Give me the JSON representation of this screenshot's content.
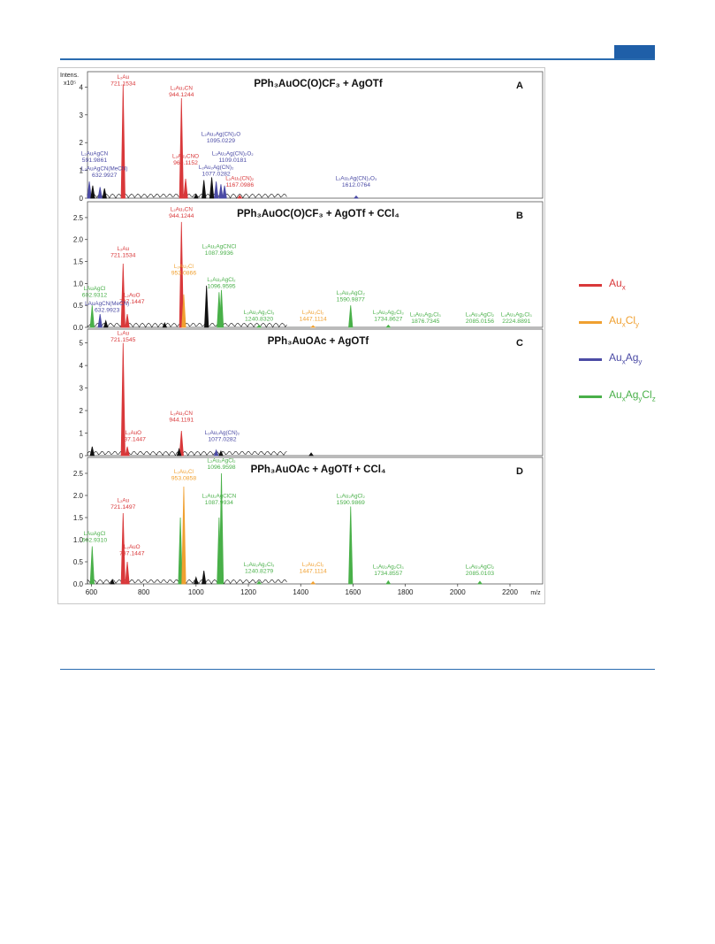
{
  "page": {
    "tab_color": "#1f5fa8"
  },
  "colors": {
    "Au": "#d9383a",
    "AuCl": "#f0a030",
    "AuAg": "#4b4ba5",
    "AuAgCl": "#49b049",
    "baseline": "#111111"
  },
  "legend": [
    {
      "series": "Au",
      "base": "Au",
      "sub1": "x",
      "mid": "",
      "sub2": "",
      "end": "",
      "sub3": "",
      "color": "#d9383a"
    },
    {
      "series": "AuCl",
      "base": "Au",
      "sub1": "x",
      "mid": "Cl",
      "sub2": "y",
      "end": "",
      "sub3": "",
      "color": "#f0a030"
    },
    {
      "series": "AuAg",
      "base": "Au",
      "sub1": "x",
      "mid": "Ag",
      "sub2": "y",
      "end": "",
      "sub3": "",
      "color": "#4b4ba5"
    },
    {
      "series": "AuAgCl",
      "base": "Au",
      "sub1": "x",
      "mid": "Ag",
      "sub2": "y",
      "end": "Cl",
      "sub3": "z",
      "color": "#49b049"
    }
  ],
  "chart_data": {
    "type": "line",
    "xlabel": "m/z",
    "ylabel": "Intens.",
    "y_multiplier": "x10⁵",
    "xlim": [
      585,
      2325
    ],
    "x_ticks": [
      600,
      800,
      1000,
      1200,
      1400,
      1600,
      1800,
      2000,
      2200
    ],
    "panels": [
      {
        "letter": "A",
        "title": "PPh₃AuOC(O)CF₃ + AgOTf",
        "ylim": [
          0,
          4.3
        ],
        "y_ticks": [
          0,
          1,
          2,
          3,
          4
        ],
        "peaks": [
          {
            "x": 721.15,
            "y": 4.1,
            "series": "Au"
          },
          {
            "x": 944.12,
            "y": 3.6,
            "series": "Au"
          },
          {
            "x": 960.12,
            "y": 0.7,
            "series": "Au"
          },
          {
            "x": 1167.1,
            "y": 0.1,
            "series": "Au"
          },
          {
            "x": 591.99,
            "y": 0.6,
            "series": "AuAg"
          },
          {
            "x": 632.99,
            "y": 0.4,
            "series": "AuAg"
          },
          {
            "x": 1077.03,
            "y": 0.6,
            "series": "AuAg"
          },
          {
            "x": 1095.02,
            "y": 0.5,
            "series": "AuAg"
          },
          {
            "x": 1109.02,
            "y": 0.45,
            "series": "AuAg"
          },
          {
            "x": 1612.08,
            "y": 0.08,
            "series": "AuAg"
          },
          {
            "x": 605,
            "y": 0.45,
            "series": "baseline"
          },
          {
            "x": 650,
            "y": 0.35,
            "series": "baseline"
          },
          {
            "x": 1030,
            "y": 0.65,
            "series": "baseline"
          },
          {
            "x": 1060,
            "y": 0.75,
            "series": "baseline"
          },
          {
            "x": 1000,
            "y": 0.15,
            "series": "baseline"
          }
        ],
        "labels": [
          {
            "x": 721.15,
            "y": 4.3,
            "name": "L₂Au",
            "mz": "721.1534",
            "series": "Au"
          },
          {
            "x": 944.12,
            "y": 3.9,
            "name": "L₂Au₂CN",
            "mz": "944.1244",
            "series": "Au"
          },
          {
            "x": 960.12,
            "y": 1.45,
            "name": "L₂Au₂CNO",
            "mz": "960.1152",
            "series": "Au"
          },
          {
            "x": 1167.1,
            "y": 0.65,
            "name": "L₂Au₃(CN)₂",
            "mz": "1167.0986",
            "series": "Au"
          },
          {
            "x": 612,
            "y": 1.55,
            "name": "L₂AuAgCN",
            "mz": "591.9861",
            "series": "AuAg"
          },
          {
            "x": 650,
            "y": 1.0,
            "name": "L₂AuAgCN(MeCN)",
            "mz": "632.9927",
            "series": "AuAg"
          },
          {
            "x": 1095.02,
            "y": 2.25,
            "name": "L₂Au₂Ag(CN)₂O",
            "mz": "1095.0229",
            "series": "AuAg"
          },
          {
            "x": 1140,
            "y": 1.55,
            "name": "L₂Au₂Ag(CN)₂O₂",
            "mz": "1109.0181",
            "series": "AuAg"
          },
          {
            "x": 1077.03,
            "y": 1.05,
            "name": "L₂Au₂Ag(CN)₂",
            "mz": "1077.0282",
            "series": "AuAg"
          },
          {
            "x": 1612.08,
            "y": 0.65,
            "name": "L₂Au₂Ag(CN)₂O₃",
            "mz": "1612.0764",
            "series": "AuAg"
          }
        ]
      },
      {
        "letter": "B",
        "title": "PPh₃AuOC(O)CF₃ + AgOTf + CCl₄",
        "ylim": [
          0,
          2.7
        ],
        "y_ticks": [
          0.0,
          0.5,
          1.0,
          1.5,
          2.0,
          2.5
        ],
        "peaks": [
          {
            "x": 721.15,
            "y": 1.45,
            "series": "Au"
          },
          {
            "x": 737.14,
            "y": 0.3,
            "series": "Au"
          },
          {
            "x": 944.12,
            "y": 2.4,
            "series": "Au"
          },
          {
            "x": 953.09,
            "y": 0.75,
            "series": "AuCl"
          },
          {
            "x": 1087.99,
            "y": 0.8,
            "series": "AuAgCl"
          },
          {
            "x": 1096.96,
            "y": 0.85,
            "series": "AuAgCl"
          },
          {
            "x": 602.93,
            "y": 0.5,
            "series": "AuAgCl"
          },
          {
            "x": 1240.83,
            "y": 0.05,
            "series": "AuAgCl"
          },
          {
            "x": 1590.99,
            "y": 0.5,
            "series": "AuAgCl"
          },
          {
            "x": 1734.86,
            "y": 0.05,
            "series": "AuAgCl"
          },
          {
            "x": 632.99,
            "y": 0.3,
            "series": "AuAg"
          },
          {
            "x": 1447.11,
            "y": 0.04,
            "series": "AuCl"
          },
          {
            "x": 1040,
            "y": 0.95,
            "series": "baseline"
          },
          {
            "x": 655,
            "y": 0.15,
            "series": "baseline"
          },
          {
            "x": 880,
            "y": 0.1,
            "series": "baseline"
          }
        ],
        "labels": [
          {
            "x": 944.12,
            "y": 2.65,
            "name": "L₂Au₂CN",
            "mz": "944.1244",
            "series": "Au"
          },
          {
            "x": 721.15,
            "y": 1.75,
            "name": "L₂Au",
            "mz": "721.1534",
            "series": "Au"
          },
          {
            "x": 1087.99,
            "y": 1.8,
            "name": "L₂Au₂AgCNCl",
            "mz": "1087.9936",
            "series": "AuAgCl"
          },
          {
            "x": 953.09,
            "y": 1.35,
            "name": "L₂Au₂Cl",
            "mz": "953.0866",
            "series": "AuCl"
          },
          {
            "x": 1096.96,
            "y": 1.05,
            "name": "L₂Au₂AgCl₂",
            "mz": "1096.9595",
            "series": "AuAgCl"
          },
          {
            "x": 1590.99,
            "y": 0.75,
            "name": "L₃Au₂AgCl₂",
            "mz": "1590.9877",
            "series": "AuAgCl"
          },
          {
            "x": 755,
            "y": 0.7,
            "name": "L₂AuO",
            "mz": "737.1447",
            "series": "Au"
          },
          {
            "x": 612,
            "y": 0.85,
            "name": "LAuAgCl",
            "mz": "602.9312",
            "series": "AuAgCl"
          },
          {
            "x": 660,
            "y": 0.5,
            "name": "LAuAgCN(MeCN)",
            "mz": "632.9923",
            "series": "AuAg"
          },
          {
            "x": 1240.83,
            "y": 0.3,
            "name": "L₂Au₂Ag₂Cl₃",
            "mz": "1240.8320",
            "series": "AuAgCl"
          },
          {
            "x": 1447.11,
            "y": 0.3,
            "name": "L₂Au₃Cl₂",
            "mz": "1447.1114",
            "series": "AuCl"
          },
          {
            "x": 1734.86,
            "y": 0.3,
            "name": "L₃Au₂Ag₂Cl₃",
            "mz": "1734.8627",
            "series": "AuAgCl"
          },
          {
            "x": 1876.73,
            "y": 0.25,
            "name": "L₃Au₃Ag₂Cl₃",
            "mz": "1876.7345",
            "series": "AuAgCl"
          },
          {
            "x": 2085.02,
            "y": 0.25,
            "name": "L₄Au₃AgCl₂",
            "mz": "2085.0156",
            "series": "AuAgCl"
          },
          {
            "x": 2224.89,
            "y": 0.25,
            "name": "L₄Au₃Ag₂Cl₃",
            "mz": "2224.8891",
            "series": "AuAgCl"
          }
        ]
      },
      {
        "letter": "C",
        "title": "PPh₃AuOAc + AgOTf",
        "ylim": [
          0,
          5.3
        ],
        "y_ticks": [
          0,
          1,
          2,
          3,
          4,
          5
        ],
        "peaks": [
          {
            "x": 721.15,
            "y": 5.0,
            "series": "Au"
          },
          {
            "x": 737.14,
            "y": 0.4,
            "series": "Au"
          },
          {
            "x": 944.12,
            "y": 1.1,
            "series": "Au"
          },
          {
            "x": 1077.03,
            "y": 0.25,
            "series": "AuAg"
          },
          {
            "x": 603,
            "y": 0.4,
            "series": "baseline"
          },
          {
            "x": 935,
            "y": 0.3,
            "series": "baseline"
          },
          {
            "x": 1440,
            "y": 0.12,
            "series": "baseline"
          },
          {
            "x": 1095,
            "y": 0.2,
            "series": "baseline"
          }
        ],
        "labels": [
          {
            "x": 721.15,
            "y": 5.35,
            "name": "L₂Au",
            "mz": "721.1545",
            "series": "Au"
          },
          {
            "x": 944.12,
            "y": 1.8,
            "name": "L₂Au₂CN",
            "mz": "944.1191",
            "series": "Au"
          },
          {
            "x": 760,
            "y": 0.95,
            "name": "L₂AuO",
            "mz": "737.1447",
            "series": "Au"
          },
          {
            "x": 1100,
            "y": 0.95,
            "name": "L₂Au₂Ag(CN)₂",
            "mz": "1077.0282",
            "series": "AuAg"
          }
        ]
      },
      {
        "letter": "D",
        "title": "PPh₃AuOAc + AgOTf + CCl₄",
        "ylim": [
          0,
          2.7
        ],
        "y_ticks": [
          0.0,
          0.5,
          1.0,
          1.5,
          2.0,
          2.5
        ],
        "peaks": [
          {
            "x": 602.93,
            "y": 0.85,
            "series": "AuAgCl"
          },
          {
            "x": 721.15,
            "y": 1.6,
            "series": "Au"
          },
          {
            "x": 737.14,
            "y": 0.5,
            "series": "Au"
          },
          {
            "x": 940,
            "y": 1.5,
            "series": "AuAgCl"
          },
          {
            "x": 953.09,
            "y": 2.2,
            "series": "AuCl"
          },
          {
            "x": 1087.99,
            "y": 1.5,
            "series": "AuAgCl"
          },
          {
            "x": 1096.96,
            "y": 2.5,
            "series": "AuAgCl"
          },
          {
            "x": 1240.83,
            "y": 0.06,
            "series": "AuAgCl"
          },
          {
            "x": 1447.11,
            "y": 0.05,
            "series": "AuCl"
          },
          {
            "x": 1590.99,
            "y": 1.75,
            "series": "AuAgCl"
          },
          {
            "x": 1734.86,
            "y": 0.07,
            "series": "AuAgCl"
          },
          {
            "x": 2085.01,
            "y": 0.06,
            "series": "AuAgCl"
          },
          {
            "x": 1000,
            "y": 0.15,
            "series": "baseline"
          },
          {
            "x": 1030,
            "y": 0.3,
            "series": "baseline"
          },
          {
            "x": 680,
            "y": 0.1,
            "series": "baseline"
          }
        ],
        "labels": [
          {
            "x": 1096.96,
            "y": 2.75,
            "name": "L₂Au₂AgCl₂",
            "mz": "1096.9598",
            "series": "AuAgCl"
          },
          {
            "x": 953.09,
            "y": 2.5,
            "name": "L₂Au₂Cl",
            "mz": "953.0858",
            "series": "AuCl"
          },
          {
            "x": 1087.99,
            "y": 1.95,
            "name": "L₂Au₂AgClCN",
            "mz": "1087.9934",
            "series": "AuAgCl"
          },
          {
            "x": 1590.99,
            "y": 1.95,
            "name": "L₃Au₂AgCl₂",
            "mz": "1590.9869",
            "series": "AuAgCl"
          },
          {
            "x": 721.15,
            "y": 1.85,
            "name": "L₂Au",
            "mz": "721.1497",
            "series": "Au"
          },
          {
            "x": 612,
            "y": 1.1,
            "name": "LAuAgCl",
            "mz": "602.9310",
            "series": "AuAgCl"
          },
          {
            "x": 755,
            "y": 0.8,
            "name": "L₂AuO",
            "mz": "737.1447",
            "series": "Au"
          },
          {
            "x": 1240.83,
            "y": 0.4,
            "name": "L₂Au₂Ag₂Cl₃",
            "mz": "1240.8279",
            "series": "AuAgCl"
          },
          {
            "x": 1447.11,
            "y": 0.4,
            "name": "L₂Au₃Cl₂",
            "mz": "1447.1114",
            "series": "AuCl"
          },
          {
            "x": 1734.86,
            "y": 0.35,
            "name": "L₃Au₂Ag₂Cl₃",
            "mz": "1734.8557",
            "series": "AuAgCl"
          },
          {
            "x": 2085.01,
            "y": 0.35,
            "name": "L₄Au₃AgCl₂",
            "mz": "2085.0103",
            "series": "AuAgCl"
          }
        ]
      }
    ]
  }
}
